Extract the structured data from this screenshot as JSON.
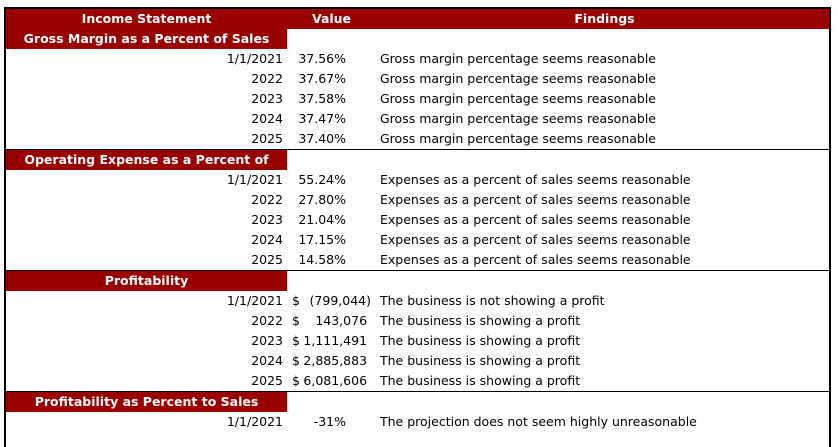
{
  "header": {
    "col1": "Income Statement",
    "col2": "Value",
    "col3": "Findings"
  },
  "sections": [
    {
      "title": "Gross Margin as a Percent of Sales",
      "rows": [
        {
          "period": "1/1/2021",
          "value": "37.56%",
          "finding": "Gross margin percentage seems reasonable"
        },
        {
          "period": "2022",
          "value": "37.67%",
          "finding": "Gross margin percentage seems reasonable"
        },
        {
          "period": "2023",
          "value": "37.58%",
          "finding": "Gross margin percentage seems reasonable"
        },
        {
          "period": "2024",
          "value": "37.47%",
          "finding": "Gross margin percentage seems reasonable"
        },
        {
          "period": "2025",
          "value": "37.40%",
          "finding": "Gross margin percentage seems reasonable"
        }
      ]
    },
    {
      "title": "Operating Expense as a Percent of Sales",
      "rows": [
        {
          "period": "1/1/2021",
          "value": "55.24%",
          "finding": "Expenses as a percent of sales seems reasonable"
        },
        {
          "period": "2022",
          "value": "27.80%",
          "finding": "Expenses as a percent of sales seems reasonable"
        },
        {
          "period": "2023",
          "value": "21.04%",
          "finding": "Expenses as a percent of sales seems reasonable"
        },
        {
          "period": "2024",
          "value": "17.15%",
          "finding": "Expenses as a percent of sales seems reasonable"
        },
        {
          "period": "2025",
          "value": "14.58%",
          "finding": "Expenses as a percent of sales seems reasonable"
        }
      ]
    },
    {
      "title": "Profitability",
      "currency": "$",
      "rows": [
        {
          "period": "1/1/2021",
          "value": "(799,044)",
          "finding": "The business is not showing a profit"
        },
        {
          "period": "2022",
          "value": "143,076 ",
          "finding": "The business is showing a profit"
        },
        {
          "period": "2023",
          "value": "1,111,491 ",
          "finding": "The business is showing a profit"
        },
        {
          "period": "2024",
          "value": "2,885,883 ",
          "finding": "The business is showing a profit"
        },
        {
          "period": "2025",
          "value": "6,081,606 ",
          "finding": "The business is showing a profit"
        }
      ]
    },
    {
      "title": "Profitability as Percent to Sales",
      "rows": [
        {
          "period": "1/1/2021",
          "value": "-31%",
          "finding": "The projection does not seem highly unreasonable"
        }
      ]
    }
  ]
}
